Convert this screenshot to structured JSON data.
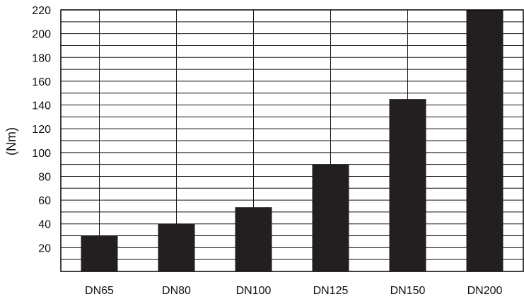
{
  "chart_data": {
    "type": "bar",
    "categories": [
      "DN65",
      "DN80",
      "DN100",
      "DN125",
      "DN150",
      "DN200"
    ],
    "values": [
      30,
      40,
      54,
      90,
      145,
      220
    ],
    "title": "",
    "xlabel": "",
    "ylabel": "(Nm)",
    "ylim": [
      0,
      220
    ],
    "y_ticks": [
      20,
      40,
      60,
      80,
      100,
      120,
      140,
      160,
      180,
      200,
      220
    ],
    "minor_grid_step": 10,
    "grid": true,
    "legend": "none",
    "colors": {
      "bar": "#231f20",
      "grid": "#111111",
      "background": "#ffffff"
    }
  }
}
